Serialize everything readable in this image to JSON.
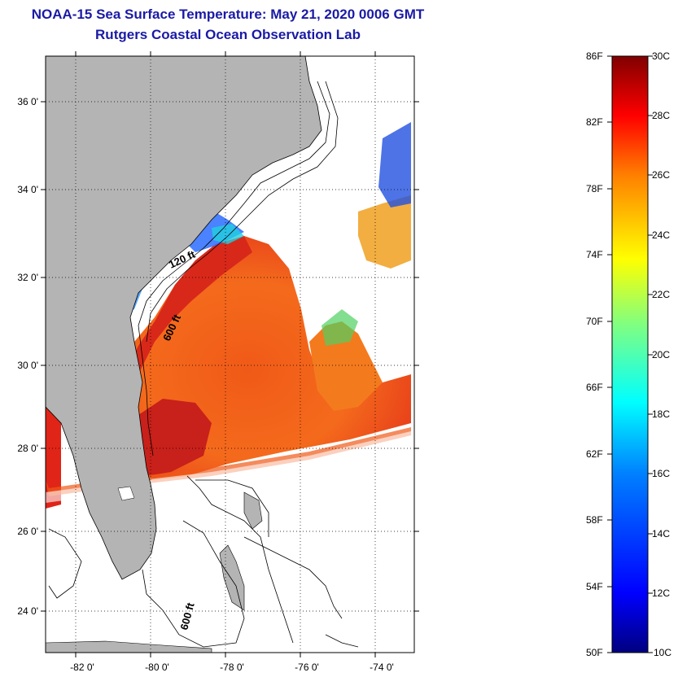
{
  "header": {
    "title": "NOAA-15 Sea Surface Temperature:  May 21, 2020 0006 GMT",
    "subtitle": "Rutgers Coastal Ocean Observation Lab"
  },
  "map": {
    "lat_labels": [
      "36 0'",
      "34 0'",
      "32 0'",
      "30 0'",
      "28 0'",
      "26 0'",
      "24 0'"
    ],
    "lon_labels": [
      "-82 0'",
      "-80 0'",
      "-78 0'",
      "-76 0'",
      "-74 0'"
    ],
    "contour_labels": [
      "120 ft",
      "600 ft",
      "600 ft"
    ],
    "colors": {
      "land": "#b4b4b4",
      "cloud": "#ffffff",
      "frame": "#000000"
    }
  },
  "colorbar": {
    "f_labels": [
      "86F",
      "82F",
      "78F",
      "74F",
      "70F",
      "66F",
      "62F",
      "58F",
      "54F",
      "50F"
    ],
    "c_labels": [
      "30C",
      "28C",
      "26C",
      "24C",
      "22C",
      "20C",
      "18C",
      "16C",
      "14C",
      "12C",
      "10C"
    ],
    "colors": [
      "#000080",
      "#0000ff",
      "#0080ff",
      "#00ffff",
      "#80ff80",
      "#ffff00",
      "#ff8000",
      "#ff0000",
      "#800000"
    ]
  }
}
